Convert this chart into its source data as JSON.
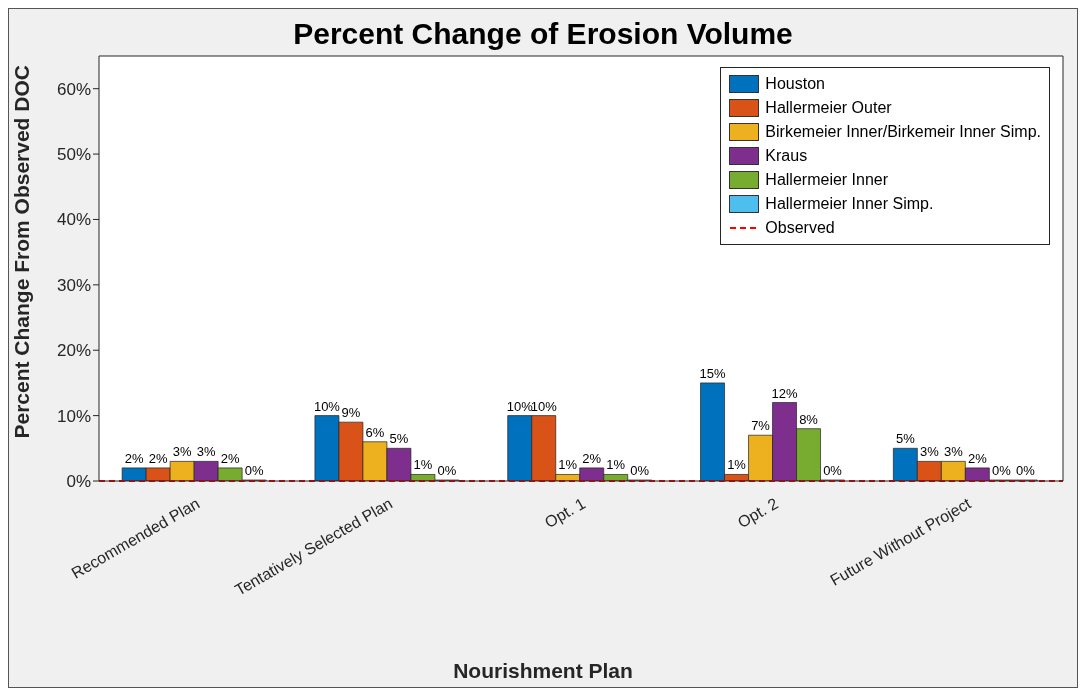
{
  "chart_data": {
    "type": "bar",
    "title": "Percent Change of Erosion Volume",
    "xlabel": "Nourishment Plan",
    "ylabel": "Percent Change From Observed DOC",
    "categories": [
      "Recommended Plan",
      "Tentatively Selected Plan",
      "Opt. 1",
      "Opt. 2",
      "Future Without Project"
    ],
    "series": [
      {
        "name": "Houston",
        "color": "#0072bd",
        "values": [
          2,
          10,
          10,
          15,
          5
        ],
        "value_labels": [
          "2%",
          "10%",
          "10%",
          "15%",
          "5%"
        ]
      },
      {
        "name": "Hallermeier Outer",
        "color": "#d95319",
        "values": [
          2,
          9,
          10,
          1,
          3
        ],
        "value_labels": [
          "2%",
          "9%",
          "10%",
          "1%",
          "3%"
        ]
      },
      {
        "name": "Birkemeier Inner/Birkemeir Inner Simp.",
        "color": "#edb120",
        "values": [
          3,
          6,
          1,
          7,
          3
        ],
        "value_labels": [
          "3%",
          "6%",
          "1%",
          "7%",
          "3%"
        ]
      },
      {
        "name": "Kraus",
        "color": "#7e2f8e",
        "values": [
          3,
          5,
          2,
          12,
          2
        ],
        "value_labels": [
          "3%",
          "5%",
          "2%",
          "12%",
          "2%"
        ]
      },
      {
        "name": "Hallermeier Inner",
        "color": "#77ac30",
        "values": [
          2,
          1,
          1,
          8,
          0
        ],
        "value_labels": [
          "2%",
          "1%",
          "1%",
          "8%",
          "0%"
        ]
      },
      {
        "name": "Hallermeier Inner Simp.",
        "color": "#4dbeee",
        "values": [
          0,
          0,
          0,
          0,
          0
        ],
        "value_labels": [
          "0%",
          "0%",
          "0%",
          "0%",
          "0%"
        ]
      }
    ],
    "ylim": [
      0,
      65
    ],
    "yticks": [
      {
        "value": 0,
        "label": "0%"
      },
      {
        "value": 10,
        "label": "10%"
      },
      {
        "value": 20,
        "label": "20%"
      },
      {
        "value": 30,
        "label": "30%"
      },
      {
        "value": 40,
        "label": "40%"
      },
      {
        "value": 50,
        "label": "50%"
      },
      {
        "value": 60,
        "label": "60%"
      }
    ],
    "ref_lines": [
      {
        "axis": "y",
        "value": 0,
        "label": "Observed",
        "color": "#ff0000",
        "line_style": "dashed"
      }
    ],
    "legend": "top right",
    "grid": false
  }
}
